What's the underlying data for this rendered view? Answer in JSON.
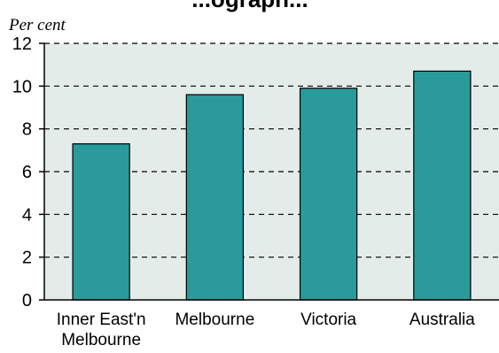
{
  "chart_data": {
    "type": "bar",
    "title_fragment": "...ograph...",
    "ylabel": "Per cent",
    "xlabel": "",
    "categories": [
      "Inner East'n Melbourne",
      "Melbourne",
      "Victoria",
      "Australia"
    ],
    "category_lines": [
      [
        "Inner East'n",
        "Melbourne"
      ],
      [
        "Melbourne"
      ],
      [
        "Victoria"
      ],
      [
        "Australia"
      ]
    ],
    "values": [
      7.3,
      9.6,
      9.9,
      10.7
    ],
    "ylim": [
      0,
      12
    ],
    "yticks": [
      "0",
      "2",
      "4",
      "6",
      "8",
      "10",
      "12"
    ],
    "grid": "dashed horizontal",
    "legend": "none",
    "colors": {
      "bar": "#2a9a9a",
      "bar_stroke": "#000000",
      "plot_bg": "#e3ece8",
      "grid": "#000000"
    }
  }
}
